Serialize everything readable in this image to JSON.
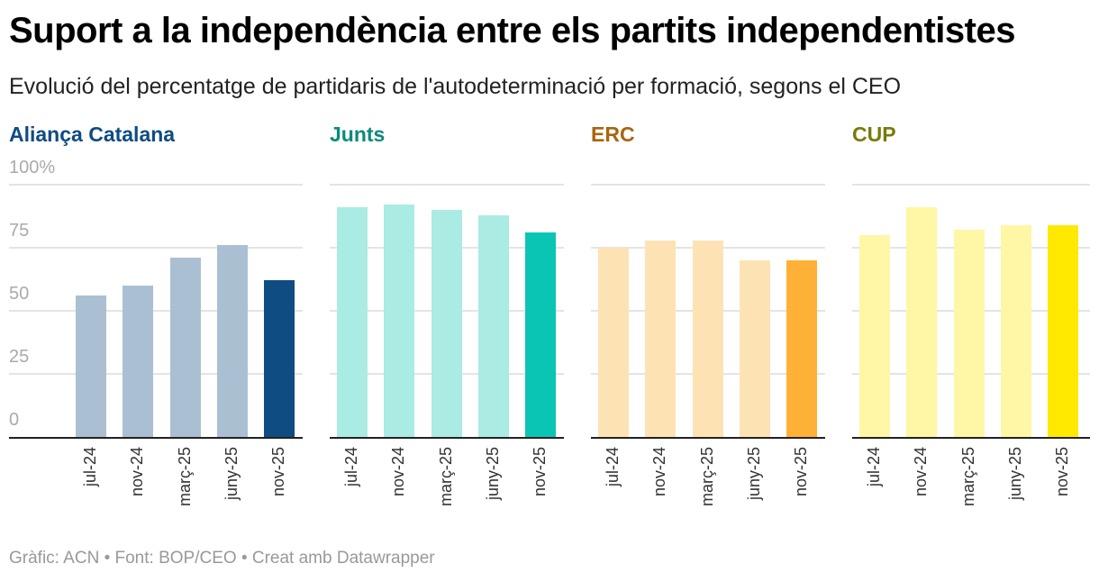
{
  "header": {
    "title": "Suport a la independència entre els partits independentistes",
    "subtitle": "Evolució del percentatge de partidaris de l'autodeterminació per formació, segons el CEO"
  },
  "footer": "Gràfic: ACN • Font: BOP/CEO • Creat amb Datawrapper",
  "chart_data": [
    {
      "type": "bar",
      "title": "Aliança Catalana",
      "title_color": "#0f4c81",
      "categories": [
        "jul-24",
        "nov-24",
        "març-25",
        "juny-25",
        "nov-25"
      ],
      "values": [
        56,
        60,
        71,
        76,
        62
      ],
      "colors": [
        "#abbfd3",
        "#abbfd3",
        "#abbfd3",
        "#abbfd3",
        "#0f4c81"
      ],
      "ylim": [
        0,
        100
      ],
      "yticks": [
        "0",
        "25",
        "50",
        "75",
        "100%"
      ]
    },
    {
      "type": "bar",
      "title": "Junts",
      "title_color": "#0b8a7a",
      "categories": [
        "jul-24",
        "nov-24",
        "març-25",
        "juny-25",
        "nov-25"
      ],
      "values": [
        91,
        92,
        90,
        88,
        81
      ],
      "colors": [
        "#aaebe4",
        "#aaebe4",
        "#aaebe4",
        "#aaebe4",
        "#0bc5b4"
      ],
      "ylim": [
        0,
        100
      ]
    },
    {
      "type": "bar",
      "title": "ERC",
      "title_color": "#a8650c",
      "categories": [
        "jul-24",
        "nov-24",
        "març-25",
        "juny-25",
        "nov-25"
      ],
      "values": [
        75,
        78,
        78,
        70,
        70
      ],
      "colors": [
        "#fde3b4",
        "#fde3b4",
        "#fde3b4",
        "#fde3b4",
        "#ffb036"
      ],
      "ylim": [
        0,
        100
      ]
    },
    {
      "type": "bar",
      "title": "CUP",
      "title_color": "#7a7a0a",
      "categories": [
        "jul-24",
        "nov-24",
        "març-25",
        "juny-25",
        "nov-25"
      ],
      "values": [
        80,
        91,
        82,
        84,
        84
      ],
      "colors": [
        "#fff6a6",
        "#fff6a6",
        "#fff6a6",
        "#fff6a6",
        "#ffe900"
      ],
      "ylim": [
        0,
        100
      ]
    }
  ]
}
